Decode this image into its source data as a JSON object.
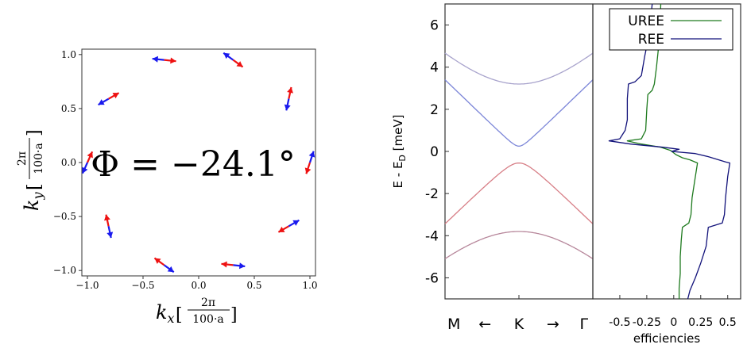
{
  "chart_data": [
    {
      "type": "quiver",
      "annotation": "Φ = −24.1°",
      "xlabel": "k",
      "xlabel_sub": "x",
      "xlabel_unit_num": "2π",
      "xlabel_unit_den": "100·a",
      "ylabel": "k",
      "ylabel_sub": "y",
      "ylabel_unit_num": "2π",
      "ylabel_unit_den": "100·a",
      "xlim": [
        -1.05,
        1.05
      ],
      "ylim": [
        -1.05,
        1.05
      ],
      "xticks": [
        -1.0,
        -0.5,
        0.0,
        0.5,
        1.0
      ],
      "xtick_labels": [
        "−1.0",
        "−0.5",
        "0.0",
        "0.5",
        "1.0"
      ],
      "yticks": [
        -1.0,
        -0.5,
        0.0,
        0.5,
        1.0
      ],
      "ytick_labels": [
        "−1.0",
        "−0.5",
        "0.0",
        "0.5",
        "1.0"
      ],
      "grid": false,
      "colors": {
        "red": "#ee1111",
        "blue": "#1a1aee"
      },
      "arrows": [
        {
          "x": 1.0,
          "y": 0.0,
          "red_angle": -108,
          "blue_angle": 72
        },
        {
          "x": 0.81,
          "y": 0.59,
          "red_angle": 78,
          "blue_angle": -102
        },
        {
          "x": 0.31,
          "y": 0.95,
          "red_angle": -36,
          "blue_angle": 144
        },
        {
          "x": -0.31,
          "y": 0.95,
          "red_angle": -6,
          "blue_angle": 174
        },
        {
          "x": -0.81,
          "y": 0.59,
          "red_angle": 30,
          "blue_angle": -150
        },
        {
          "x": -1.0,
          "y": 0.0,
          "red_angle": 66,
          "blue_angle": -114
        },
        {
          "x": -0.81,
          "y": -0.59,
          "red_angle": 102,
          "blue_angle": -78
        },
        {
          "x": -0.31,
          "y": -0.95,
          "red_angle": 144,
          "blue_angle": -36
        },
        {
          "x": 0.31,
          "y": -0.95,
          "red_angle": 174,
          "blue_angle": -6
        },
        {
          "x": 0.81,
          "y": -0.59,
          "red_angle": -150,
          "blue_angle": 30
        }
      ]
    },
    {
      "type": "line",
      "ylabel": "E - E",
      "ylabel_sub": "D",
      "ylabel_unit": "[meV]",
      "ylim": [
        -7,
        7
      ],
      "yticks": [
        -6,
        -4,
        -2,
        0,
        2,
        4,
        6
      ],
      "ytick_labels": [
        "-6",
        "-4",
        "-2",
        "0",
        "2",
        "4",
        "6"
      ],
      "xlim": [
        -1,
        1
      ],
      "xtick_labels": [
        "M",
        "←",
        "K",
        "→",
        "Γ"
      ],
      "xtick_positions": [
        -0.88,
        -0.46,
        0.0,
        0.46,
        0.88
      ],
      "grid": false,
      "series": [
        {
          "upper": true,
          "gap": 3.2,
          "mass": 0.9,
          "shift": 0.0,
          "color": "#a8a3cc"
        },
        {
          "upper": true,
          "gap": 0.25,
          "mass": 0.9,
          "shift": 0.0,
          "color": "#7c86d8"
        },
        {
          "upper": false,
          "gap": -0.55,
          "mass": 0.9,
          "shift": 0.0,
          "color": "#d77e86"
        },
        {
          "upper": false,
          "gap": -3.8,
          "mass": 0.9,
          "shift": 0.0,
          "color": "#b7879b"
        }
      ]
    },
    {
      "type": "line",
      "xlabel": "efficiencies",
      "xlim": [
        -0.75,
        0.62
      ],
      "xticks": [
        -0.5,
        -0.25,
        0,
        0.25,
        0.5
      ],
      "xtick_labels": [
        "-0.5",
        "-0.25",
        "0",
        "0.25",
        "0.5"
      ],
      "ylim": [
        -7,
        7
      ],
      "legend": "top-right",
      "series": [
        {
          "name": "UREE",
          "color": "#1e7a1e",
          "points": [
            [
              -0.12,
              7
            ],
            [
              -0.13,
              5.5
            ],
            [
              -0.16,
              4
            ],
            [
              -0.18,
              3.2
            ],
            [
              -0.2,
              2.9
            ],
            [
              -0.24,
              2.7
            ],
            [
              -0.25,
              2.0
            ],
            [
              -0.26,
              1.0
            ],
            [
              -0.3,
              0.6
            ],
            [
              -0.43,
              0.5
            ],
            [
              -0.3,
              0.35
            ],
            [
              -0.12,
              0.2
            ],
            [
              -0.03,
              0.05
            ],
            [
              0.02,
              -0.15
            ],
            [
              0.08,
              -0.3
            ],
            [
              0.15,
              -0.4
            ],
            [
              0.22,
              -0.55
            ],
            [
              0.2,
              -1.2
            ],
            [
              0.17,
              -2.2
            ],
            [
              0.16,
              -3.0
            ],
            [
              0.14,
              -3.4
            ],
            [
              0.08,
              -3.6
            ],
            [
              0.07,
              -4.2
            ],
            [
              0.06,
              -5
            ],
            [
              0.06,
              -5.8
            ],
            [
              0.05,
              -6.5
            ],
            [
              0.05,
              -7
            ]
          ]
        },
        {
          "name": "REE",
          "color": "#12127a",
          "points": [
            [
              -0.2,
              7
            ],
            [
              -0.23,
              5.5
            ],
            [
              -0.27,
              4.5
            ],
            [
              -0.3,
              3.6
            ],
            [
              -0.36,
              3.3
            ],
            [
              -0.42,
              3.2
            ],
            [
              -0.43,
              2.5
            ],
            [
              -0.43,
              1.5
            ],
            [
              -0.45,
              1.0
            ],
            [
              -0.5,
              0.6
            ],
            [
              -0.6,
              0.5
            ],
            [
              -0.4,
              0.35
            ],
            [
              -0.1,
              0.2
            ],
            [
              0.05,
              0.1
            ],
            [
              -0.02,
              0.0
            ],
            [
              0.2,
              -0.1
            ],
            [
              0.32,
              -0.25
            ],
            [
              0.48,
              -0.5
            ],
            [
              0.52,
              -0.55
            ],
            [
              0.5,
              -1.2
            ],
            [
              0.48,
              -2.2
            ],
            [
              0.47,
              -3.0
            ],
            [
              0.45,
              -3.4
            ],
            [
              0.32,
              -3.6
            ],
            [
              0.3,
              -4.5
            ],
            [
              0.25,
              -5.3
            ],
            [
              0.2,
              -6
            ],
            [
              0.15,
              -6.6
            ],
            [
              0.13,
              -7
            ]
          ]
        }
      ]
    }
  ]
}
